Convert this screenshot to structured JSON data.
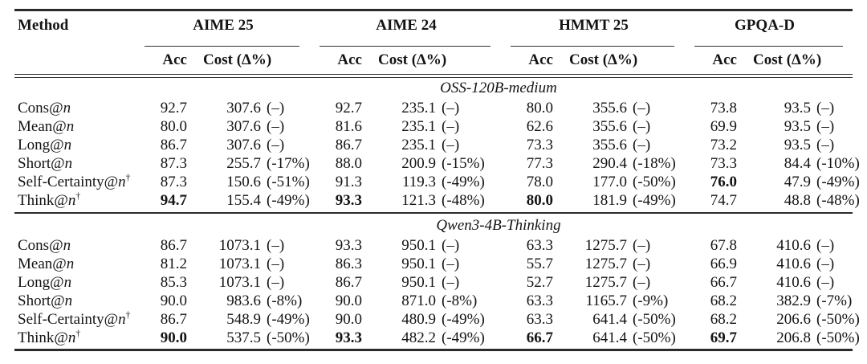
{
  "table": {
    "method_header": "Method",
    "method_var": "n",
    "footnote_symbol": "†",
    "col_groups": [
      "AIME 25",
      "AIME 24",
      "HMMT 25",
      "GPQA-D"
    ],
    "sub_headers": {
      "acc": "Acc",
      "cost": "Cost (Δ%)"
    },
    "sections": [
      {
        "title": "OSS-120B-medium",
        "rows": [
          {
            "method": "Cons@",
            "dagger": false,
            "cells": [
              {
                "acc": "92.7",
                "acc_bold": false,
                "cost": "307.6",
                "delta": "(–)"
              },
              {
                "acc": "92.7",
                "acc_bold": false,
                "cost": "235.1",
                "delta": "(–)"
              },
              {
                "acc": "80.0",
                "acc_bold": false,
                "cost": "355.6",
                "delta": "(–)"
              },
              {
                "acc": "73.8",
                "acc_bold": false,
                "cost": "93.5",
                "delta": "(–)"
              }
            ]
          },
          {
            "method": "Mean@",
            "dagger": false,
            "cells": [
              {
                "acc": "80.0",
                "acc_bold": false,
                "cost": "307.6",
                "delta": "(–)"
              },
              {
                "acc": "81.6",
                "acc_bold": false,
                "cost": "235.1",
                "delta": "(–)"
              },
              {
                "acc": "62.6",
                "acc_bold": false,
                "cost": "355.6",
                "delta": "(–)"
              },
              {
                "acc": "69.9",
                "acc_bold": false,
                "cost": "93.5",
                "delta": "(–)"
              }
            ]
          },
          {
            "method": "Long@",
            "dagger": false,
            "cells": [
              {
                "acc": "86.7",
                "acc_bold": false,
                "cost": "307.6",
                "delta": "(–)"
              },
              {
                "acc": "86.7",
                "acc_bold": false,
                "cost": "235.1",
                "delta": "(–)"
              },
              {
                "acc": "73.3",
                "acc_bold": false,
                "cost": "355.6",
                "delta": "(–)"
              },
              {
                "acc": "73.2",
                "acc_bold": false,
                "cost": "93.5",
                "delta": "(–)"
              }
            ]
          },
          {
            "method": "Short@",
            "dagger": false,
            "cells": [
              {
                "acc": "87.3",
                "acc_bold": false,
                "cost": "255.7",
                "delta": "(-17%)"
              },
              {
                "acc": "88.0",
                "acc_bold": false,
                "cost": "200.9",
                "delta": "(-15%)"
              },
              {
                "acc": "77.3",
                "acc_bold": false,
                "cost": "290.4",
                "delta": "(-18%)"
              },
              {
                "acc": "73.3",
                "acc_bold": false,
                "cost": "84.4",
                "delta": "(-10%)"
              }
            ]
          },
          {
            "method": "Self-Certainty@",
            "dagger": true,
            "cells": [
              {
                "acc": "87.3",
                "acc_bold": false,
                "cost": "150.6",
                "delta": "(-51%)"
              },
              {
                "acc": "91.3",
                "acc_bold": false,
                "cost": "119.3",
                "delta": "(-49%)"
              },
              {
                "acc": "78.0",
                "acc_bold": false,
                "cost": "177.0",
                "delta": "(-50%)"
              },
              {
                "acc": "76.0",
                "acc_bold": true,
                "cost": "47.9",
                "delta": "(-49%)"
              }
            ]
          },
          {
            "method": "Think@",
            "dagger": true,
            "cells": [
              {
                "acc": "94.7",
                "acc_bold": true,
                "cost": "155.4",
                "delta": "(-49%)"
              },
              {
                "acc": "93.3",
                "acc_bold": true,
                "cost": "121.3",
                "delta": "(-48%)"
              },
              {
                "acc": "80.0",
                "acc_bold": true,
                "cost": "181.9",
                "delta": "(-49%)"
              },
              {
                "acc": "74.7",
                "acc_bold": false,
                "cost": "48.8",
                "delta": "(-48%)"
              }
            ]
          }
        ]
      },
      {
        "title": "Qwen3-4B-Thinking",
        "rows": [
          {
            "method": "Cons@",
            "dagger": false,
            "cells": [
              {
                "acc": "86.7",
                "acc_bold": false,
                "cost": "1073.1",
                "delta": "(–)"
              },
              {
                "acc": "93.3",
                "acc_bold": false,
                "cost": "950.1",
                "delta": "(–)"
              },
              {
                "acc": "63.3",
                "acc_bold": false,
                "cost": "1275.7",
                "delta": "(–)"
              },
              {
                "acc": "67.8",
                "acc_bold": false,
                "cost": "410.6",
                "delta": "(–)"
              }
            ]
          },
          {
            "method": "Mean@",
            "dagger": false,
            "cells": [
              {
                "acc": "81.2",
                "acc_bold": false,
                "cost": "1073.1",
                "delta": "(–)"
              },
              {
                "acc": "86.3",
                "acc_bold": false,
                "cost": "950.1",
                "delta": "(–)"
              },
              {
                "acc": "55.7",
                "acc_bold": false,
                "cost": "1275.7",
                "delta": "(–)"
              },
              {
                "acc": "66.9",
                "acc_bold": false,
                "cost": "410.6",
                "delta": "(–)"
              }
            ]
          },
          {
            "method": "Long@",
            "dagger": false,
            "cells": [
              {
                "acc": "85.3",
                "acc_bold": false,
                "cost": "1073.1",
                "delta": "(–)"
              },
              {
                "acc": "86.7",
                "acc_bold": false,
                "cost": "950.1",
                "delta": "(–)"
              },
              {
                "acc": "52.7",
                "acc_bold": false,
                "cost": "1275.7",
                "delta": "(–)"
              },
              {
                "acc": "66.7",
                "acc_bold": false,
                "cost": "410.6",
                "delta": "(–)"
              }
            ]
          },
          {
            "method": "Short@",
            "dagger": false,
            "cells": [
              {
                "acc": "90.0",
                "acc_bold": false,
                "cost": "983.6",
                "delta": "(-8%)"
              },
              {
                "acc": "90.0",
                "acc_bold": false,
                "cost": "871.0",
                "delta": "(-8%)"
              },
              {
                "acc": "63.3",
                "acc_bold": false,
                "cost": "1165.7",
                "delta": "(-9%)"
              },
              {
                "acc": "68.2",
                "acc_bold": false,
                "cost": "382.9",
                "delta": "(-7%)"
              }
            ]
          },
          {
            "method": "Self-Certainty@",
            "dagger": true,
            "cells": [
              {
                "acc": "86.7",
                "acc_bold": false,
                "cost": "548.9",
                "delta": "(-49%)"
              },
              {
                "acc": "90.0",
                "acc_bold": false,
                "cost": "480.9",
                "delta": "(-49%)"
              },
              {
                "acc": "63.3",
                "acc_bold": false,
                "cost": "641.4",
                "delta": "(-50%)"
              },
              {
                "acc": "68.2",
                "acc_bold": false,
                "cost": "206.6",
                "delta": "(-50%)"
              }
            ]
          },
          {
            "method": "Think@",
            "dagger": true,
            "cells": [
              {
                "acc": "90.0",
                "acc_bold": true,
                "cost": "537.5",
                "delta": "(-50%)"
              },
              {
                "acc": "93.3",
                "acc_bold": true,
                "cost": "482.2",
                "delta": "(-49%)"
              },
              {
                "acc": "66.7",
                "acc_bold": true,
                "cost": "641.4",
                "delta": "(-50%)"
              },
              {
                "acc": "69.7",
                "acc_bold": true,
                "cost": "206.8",
                "delta": "(-50%)"
              }
            ]
          }
        ]
      }
    ]
  }
}
